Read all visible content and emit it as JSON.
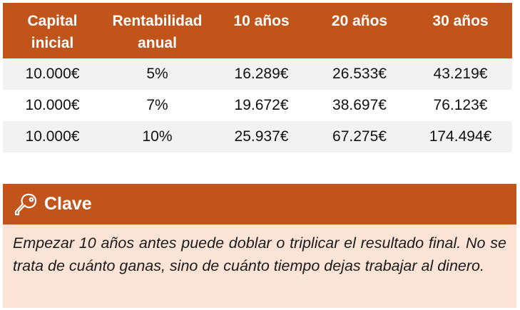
{
  "table": {
    "headers": [
      {
        "line1": "Capital",
        "line2": "inicial"
      },
      {
        "line1": "Rentabilidad",
        "line2": "anual"
      },
      {
        "line1": "10 años",
        "line2": ""
      },
      {
        "line1": "20 años",
        "line2": ""
      },
      {
        "line1": "30 años",
        "line2": ""
      }
    ],
    "rows": [
      [
        "10.000€",
        "5%",
        "16.289€",
        "26.533€",
        "43.219€"
      ],
      [
        "10.000€",
        "7%",
        "19.672€",
        "38.697€",
        "76.123€"
      ],
      [
        "10.000€",
        "10%",
        "25.937€",
        "67.275€",
        "174.494€"
      ]
    ]
  },
  "callout": {
    "icon": "key-icon",
    "title": "Clave",
    "text": "Empezar 10 años antes puede doblar o triplicar el resultado final. No se trata de cuánto ganas, sino de cuánto tiempo dejas trabajar al dinero."
  },
  "colors": {
    "accent": "#c0541a",
    "callout_background": "#fbe4d6",
    "row_shade": "#f2f2f2"
  }
}
